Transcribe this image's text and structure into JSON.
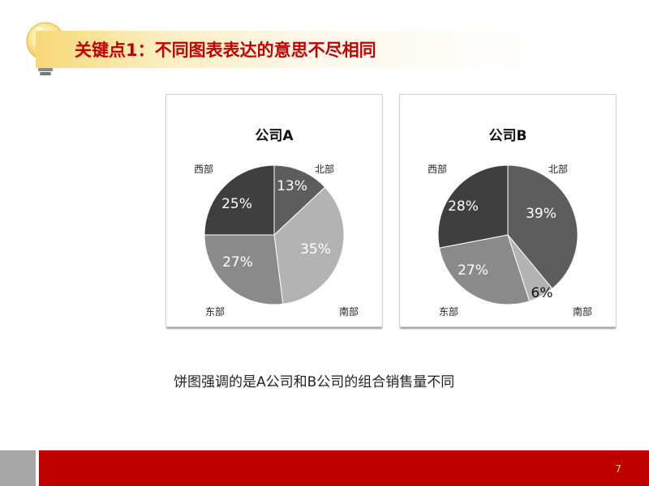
{
  "slide": {
    "title": "关键点1：不同图表表达的意思不尽相同",
    "caption": "饼图强调的是A公司和B公司的组合销售量不同",
    "page_number": "7"
  },
  "colors": {
    "title_red": "#c00000",
    "footer_red": "#c00000",
    "footer_gray": "#a6a6a6"
  },
  "chart_data": [
    {
      "type": "pie",
      "title": "公司A",
      "categories": [
        "北部",
        "南部",
        "东部",
        "西部"
      ],
      "values": [
        13,
        35,
        27,
        25
      ],
      "labels": [
        "13%",
        "35%",
        "27%",
        "25%"
      ],
      "colors": [
        "#5d5d5d",
        "#b3b3b3",
        "#8a8a8a",
        "#3f3f3f"
      ]
    },
    {
      "type": "pie",
      "title": "公司B",
      "categories": [
        "北部",
        "南部",
        "东部",
        "西部"
      ],
      "values": [
        39,
        6,
        27,
        28
      ],
      "labels": [
        "39%",
        "6%",
        "27%",
        "28%"
      ],
      "colors": [
        "#5d5d5d",
        "#b3b3b3",
        "#8a8a8a",
        "#3f3f3f"
      ]
    }
  ]
}
